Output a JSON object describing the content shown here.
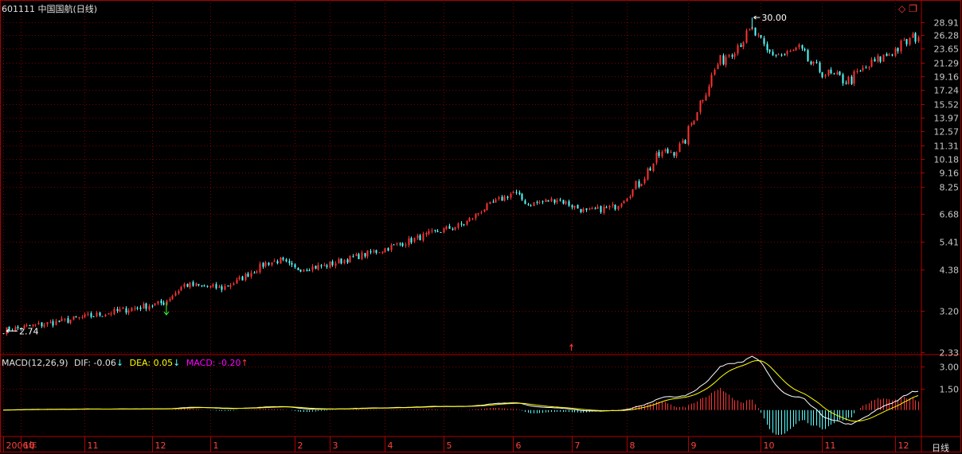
{
  "header": {
    "code": "601111",
    "name": "中国国航",
    "period": "(日线)"
  },
  "period_button": "日线",
  "colors": {
    "background": "#000000",
    "frame": "#b00000",
    "grid": "#7a0000",
    "up": "#ff3232",
    "down": "#54ffff",
    "dif": "#ffffff",
    "dea": "#ffff00",
    "macd_label": "#ff00ff",
    "tick_text": "#c8c8c8"
  },
  "chart_data": [
    {
      "type": "candlestick",
      "title": "601111 中国国航(日线)",
      "y_scale": "log",
      "ylim": [
        2.33,
        31.5
      ],
      "yticks": [
        "28.91",
        "26.28",
        "23.65",
        "21.29",
        "19.16",
        "17.24",
        "15.52",
        "13.97",
        "12.57",
        "11.31",
        "10.18",
        "9.16",
        "8.25",
        "6.68",
        "5.41",
        "4.38",
        "3.20",
        "2.33"
      ],
      "annotations": [
        {
          "text": "30.00",
          "value": 30.0,
          "type": "high"
        },
        {
          "text": "2.74",
          "value": 2.74,
          "type": "low"
        }
      ],
      "x_labels": [
        "2006年",
        "10",
        "11",
        "12",
        "1",
        "2",
        "3",
        "4",
        "5",
        "6",
        "7",
        "8",
        "9",
        "10",
        "11",
        "12"
      ],
      "x_positions": [
        0,
        6,
        28,
        51,
        71,
        100,
        112,
        131,
        151,
        175,
        195,
        214,
        235,
        260,
        281,
        306
      ],
      "num_bars": 315,
      "price_path": [
        [
          0,
          2.75
        ],
        [
          20,
          2.95
        ],
        [
          40,
          3.2
        ],
        [
          55,
          3.4
        ],
        [
          62,
          3.9
        ],
        [
          75,
          3.8
        ],
        [
          80,
          4.0
        ],
        [
          90,
          4.6
        ],
        [
          95,
          4.7
        ],
        [
          100,
          4.4
        ],
        [
          110,
          4.5
        ],
        [
          120,
          4.8
        ],
        [
          130,
          5.1
        ],
        [
          150,
          5.9
        ],
        [
          158,
          6.2
        ],
        [
          165,
          7.0
        ],
        [
          175,
          7.9
        ],
        [
          180,
          7.2
        ],
        [
          190,
          7.5
        ],
        [
          200,
          6.8
        ],
        [
          210,
          7.1
        ],
        [
          216,
          8.0
        ],
        [
          225,
          10.5
        ],
        [
          233,
          11.2
        ],
        [
          238,
          15.0
        ],
        [
          245,
          21.0
        ],
        [
          253,
          25.0
        ],
        [
          257,
          27.2
        ],
        [
          262,
          23.0
        ],
        [
          268,
          22.5
        ],
        [
          273,
          23.5
        ],
        [
          278,
          20.5
        ],
        [
          285,
          19.0
        ],
        [
          290,
          18.5
        ],
        [
          298,
          21.0
        ],
        [
          306,
          23.5
        ],
        [
          314,
          26.3
        ]
      ]
    },
    {
      "type": "macd",
      "title": "MACD(12,26,9)",
      "params": [
        12,
        26,
        9
      ],
      "legend": [
        {
          "key": "DIF",
          "label": "DIF:",
          "value": "-0.06",
          "arrow": "↓"
        },
        {
          "key": "DEA",
          "label": "DEA:",
          "value": "0.05",
          "arrow": "↓"
        },
        {
          "key": "MACD",
          "label": "MACD:",
          "value": "-0.20",
          "arrow": "↑"
        }
      ],
      "yticks": [
        "3.00",
        "1.50"
      ],
      "ylim": [
        -1.5,
        3.4
      ]
    }
  ]
}
